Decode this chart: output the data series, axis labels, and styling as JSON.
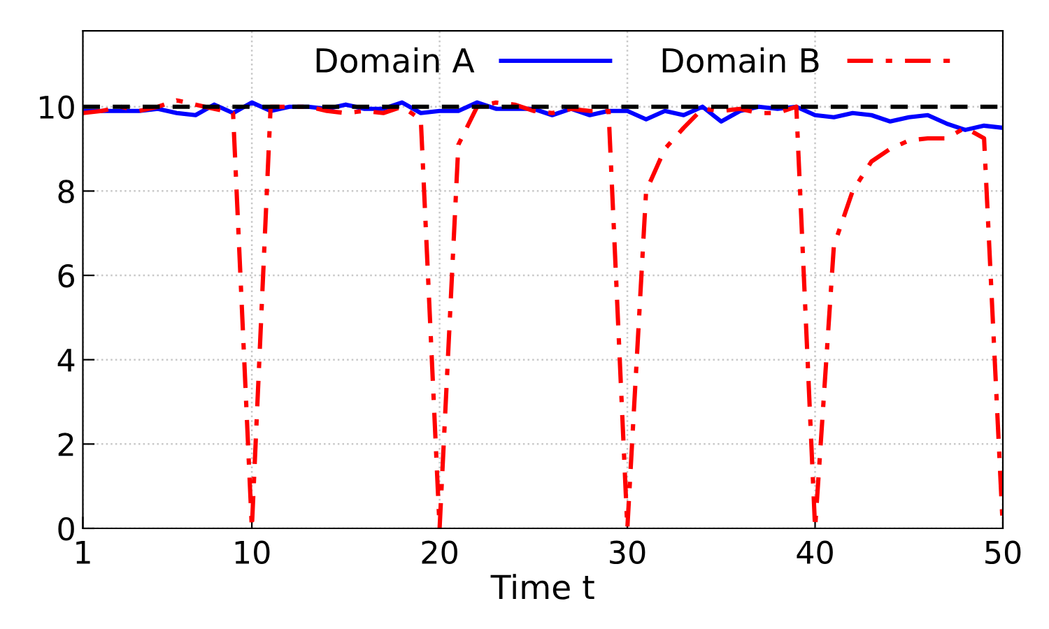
{
  "chart_data": {
    "type": "line",
    "xlabel": "Time t",
    "x": [
      1,
      2,
      3,
      4,
      5,
      6,
      7,
      8,
      9,
      10,
      11,
      12,
      13,
      14,
      15,
      16,
      17,
      18,
      19,
      20,
      21,
      22,
      23,
      24,
      25,
      26,
      27,
      28,
      29,
      30,
      31,
      32,
      33,
      34,
      35,
      36,
      37,
      38,
      39,
      40,
      41,
      42,
      43,
      44,
      45,
      46,
      47,
      48,
      49,
      50
    ],
    "series": [
      {
        "name": "Domain A",
        "color": "#0000ff",
        "line_style": "solid",
        "values": [
          9.9,
          9.9,
          9.9,
          9.9,
          9.95,
          9.85,
          9.8,
          10.05,
          9.85,
          10.1,
          9.9,
          10.0,
          10.0,
          9.95,
          10.05,
          9.95,
          9.95,
          10.1,
          9.85,
          9.9,
          9.9,
          10.1,
          9.95,
          9.95,
          9.95,
          9.8,
          9.95,
          9.8,
          9.9,
          9.9,
          9.7,
          9.9,
          9.8,
          10.0,
          9.65,
          9.9,
          10.0,
          9.95,
          10.0,
          9.8,
          9.75,
          9.85,
          9.8,
          9.65,
          9.75,
          9.8,
          9.6,
          9.45,
          9.55,
          9.5
        ]
      },
      {
        "name": "Domain B",
        "color": "#ff0000",
        "line_style": "dashdot",
        "values": [
          9.85,
          9.9,
          10.0,
          9.9,
          10.0,
          10.15,
          10.05,
          9.95,
          9.85,
          0,
          10.0,
          10.0,
          10.0,
          9.9,
          9.85,
          9.9,
          9.85,
          10.0,
          9.7,
          0,
          9.1,
          10.0,
          10.1,
          10.05,
          9.9,
          9.85,
          9.95,
          9.9,
          9.9,
          0,
          8.0,
          9.0,
          9.5,
          9.95,
          9.9,
          9.95,
          9.85,
          9.85,
          10.0,
          0,
          6.7,
          8.0,
          8.7,
          9.0,
          9.2,
          9.25,
          9.25,
          9.5,
          9.25,
          0
        ]
      }
    ],
    "ref_lines": [
      {
        "axis": "y",
        "value": 10,
        "color": "#000000",
        "line_style": "dashed"
      }
    ],
    "xlim": [
      1,
      50
    ],
    "xticks": [
      1,
      10,
      20,
      30,
      40,
      50
    ],
    "ylim": [
      0,
      11.8
    ],
    "yticks": [
      0,
      2,
      4,
      6,
      8,
      10
    ],
    "grid": true,
    "legend": "top",
    "marker": "none"
  }
}
